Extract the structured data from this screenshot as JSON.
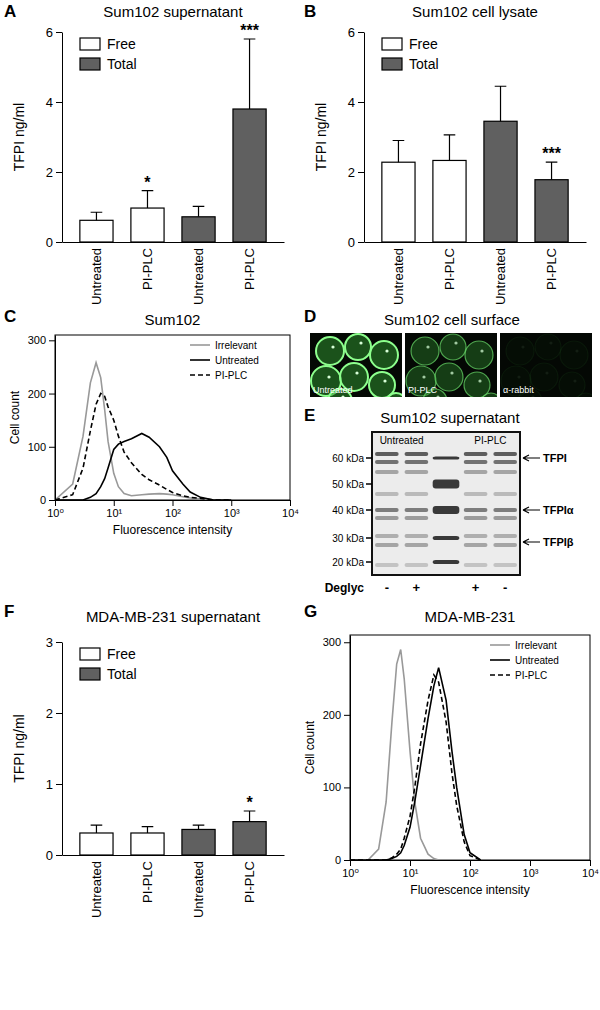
{
  "chart_data": [
    {
      "type": "bar",
      "panel": "A",
      "title": "Sum102 supernatant",
      "y_label": "TFPI ng/ml",
      "categories": [
        "Untreated",
        "PI-PLC",
        "Untreated",
        "PI-PLC"
      ],
      "ylim": [
        0,
        6
      ],
      "yticks": [
        0,
        2,
        4,
        6
      ],
      "legend": "top-left",
      "series": [
        {
          "name": "Free",
          "color": "#ffffff",
          "values": [
            0.62,
            0.97,
            null,
            null
          ],
          "errors": [
            0.23,
            0.5,
            null,
            null
          ],
          "significance": [
            null,
            "*",
            null,
            null
          ]
        },
        {
          "name": "Total",
          "color": "#606060",
          "values": [
            null,
            null,
            0.72,
            3.8
          ],
          "errors": [
            null,
            null,
            0.3,
            2.0
          ],
          "significance": [
            null,
            null,
            null,
            "***"
          ]
        }
      ]
    },
    {
      "type": "bar",
      "panel": "B",
      "title": "Sum102 cell lysate",
      "y_label": "TFPI ng/ml",
      "categories": [
        "Untreated",
        "PI-PLC",
        "Untreated",
        "PI-PLC"
      ],
      "ylim": [
        0,
        6
      ],
      "yticks": [
        0,
        2,
        4,
        6
      ],
      "legend": "top-left",
      "series": [
        {
          "name": "Free",
          "color": "#ffffff",
          "values": [
            2.28,
            2.33,
            null,
            null
          ],
          "errors": [
            0.62,
            0.73,
            null,
            null
          ],
          "significance": [
            null,
            null,
            null,
            null
          ]
        },
        {
          "name": "Total",
          "color": "#606060",
          "values": [
            null,
            null,
            3.45,
            1.78
          ],
          "errors": [
            null,
            null,
            1.0,
            0.5
          ],
          "significance": [
            null,
            null,
            null,
            "***"
          ]
        }
      ]
    },
    {
      "type": "line",
      "panel": "C",
      "title": "Sum102",
      "x_label": "Fluorescence intensity",
      "y_label": "Cell count",
      "log": "x",
      "xlim": [
        1,
        10000
      ],
      "xticks": [
        {
          "value": 1,
          "label": "10⁰"
        },
        {
          "value": 10,
          "label": "10¹"
        },
        {
          "value": 100,
          "label": "10²"
        },
        {
          "value": 1000,
          "label": "10³"
        },
        {
          "value": 10000,
          "label": "10⁴"
        }
      ],
      "ylim": [
        0,
        310
      ],
      "yticks": [
        0,
        100,
        200,
        300
      ],
      "legend": "top-right",
      "x": [
        1,
        2,
        3,
        4,
        5,
        6,
        7,
        8,
        10,
        12,
        15,
        20,
        30,
        40,
        60,
        80,
        100,
        150,
        200,
        300,
        500,
        1000
      ],
      "series": [
        {
          "name": "Irrelevant",
          "color": "#999999",
          "line_style": "solid",
          "values": [
            0,
            30,
            120,
            220,
            258,
            230,
            170,
            110,
            50,
            25,
            12,
            8,
            10,
            11,
            12,
            11,
            10,
            6,
            4,
            2,
            0,
            0
          ]
        },
        {
          "name": "Untreated",
          "color": "#000000",
          "line_style": "solid",
          "values": [
            0,
            0,
            0,
            5,
            12,
            25,
            40,
            60,
            95,
            105,
            110,
            115,
            125,
            118,
            100,
            80,
            55,
            30,
            15,
            5,
            0,
            0
          ]
        },
        {
          "name": "PI-PLC",
          "color": "#000000",
          "line_style": "dashed",
          "values": [
            0,
            10,
            60,
            130,
            180,
            200,
            195,
            175,
            150,
            120,
            90,
            70,
            48,
            38,
            28,
            20,
            14,
            8,
            5,
            3,
            0,
            0
          ]
        }
      ]
    },
    {
      "type": "bar",
      "panel": "F",
      "title": "MDA-MB-231 supernatant",
      "y_label": "TFPI ng/ml",
      "categories": [
        "Untreated",
        "PI-PLC",
        "Untreated",
        "PI-PLC"
      ],
      "ylim": [
        0,
        3
      ],
      "yticks": [
        0,
        1,
        2,
        3
      ],
      "legend": "top-left",
      "series": [
        {
          "name": "Free",
          "color": "#ffffff",
          "values": [
            0.31,
            0.31,
            null,
            null
          ],
          "errors": [
            0.11,
            0.09,
            null,
            null
          ],
          "significance": [
            null,
            null,
            null,
            null
          ]
        },
        {
          "name": "Total",
          "color": "#606060",
          "values": [
            null,
            null,
            0.36,
            0.47
          ],
          "errors": [
            null,
            null,
            0.06,
            0.15
          ],
          "significance": [
            null,
            null,
            null,
            "*"
          ]
        }
      ]
    },
    {
      "type": "line",
      "panel": "G",
      "title": "MDA-MB-231",
      "x_label": "Fluorescence intensity",
      "y_label": "Cell count",
      "log": "x",
      "xlim": [
        1,
        10000
      ],
      "xticks": [
        {
          "value": 1,
          "label": "10⁰"
        },
        {
          "value": 10,
          "label": "10¹"
        },
        {
          "value": 100,
          "label": "10²"
        },
        {
          "value": 1000,
          "label": "10³"
        },
        {
          "value": 10000,
          "label": "10⁴"
        }
      ],
      "ylim": [
        0,
        310
      ],
      "yticks": [
        0,
        100,
        200,
        300
      ],
      "legend": "top-right",
      "x": [
        1,
        2,
        3,
        4,
        5,
        6,
        7,
        8,
        10,
        12,
        15,
        20,
        25,
        30,
        40,
        50,
        60,
        80,
        100,
        150
      ],
      "series": [
        {
          "name": "Irrelevant",
          "color": "#999999",
          "line_style": "solid",
          "values": [
            0,
            0,
            15,
            80,
            190,
            270,
            290,
            250,
            150,
            80,
            30,
            8,
            2,
            0,
            0,
            0,
            0,
            0,
            0,
            0
          ]
        },
        {
          "name": "Untreated",
          "color": "#000000",
          "line_style": "solid",
          "values": [
            0,
            0,
            0,
            0,
            2,
            5,
            10,
            20,
            45,
            80,
            130,
            195,
            240,
            265,
            220,
            150,
            100,
            35,
            10,
            0
          ]
        },
        {
          "name": "PI-PLC",
          "color": "#000000",
          "line_style": "dashed",
          "values": [
            0,
            0,
            0,
            0,
            3,
            8,
            15,
            30,
            60,
            100,
            160,
            220,
            255,
            245,
            190,
            120,
            75,
            25,
            6,
            0
          ]
        }
      ]
    }
  ],
  "image_panel": {
    "panel": "D",
    "title": "Sum102 cell surface",
    "images": [
      "Untreated",
      "PI-PLC",
      "α-rabbit"
    ]
  },
  "blot_panel": {
    "panel": "E",
    "title": "Sum102 supernatant",
    "groups": [
      "Untreated",
      "PI-PLC"
    ],
    "markers": [
      "60 kDa",
      "50 kDa",
      "40 kDa",
      "30 kDa",
      "20 kDa"
    ],
    "bands": [
      "TFPI",
      "TFPIα",
      "TFPIβ"
    ],
    "row_label": "Deglyc",
    "lanes": [
      "-",
      "+",
      "+",
      "-"
    ]
  }
}
